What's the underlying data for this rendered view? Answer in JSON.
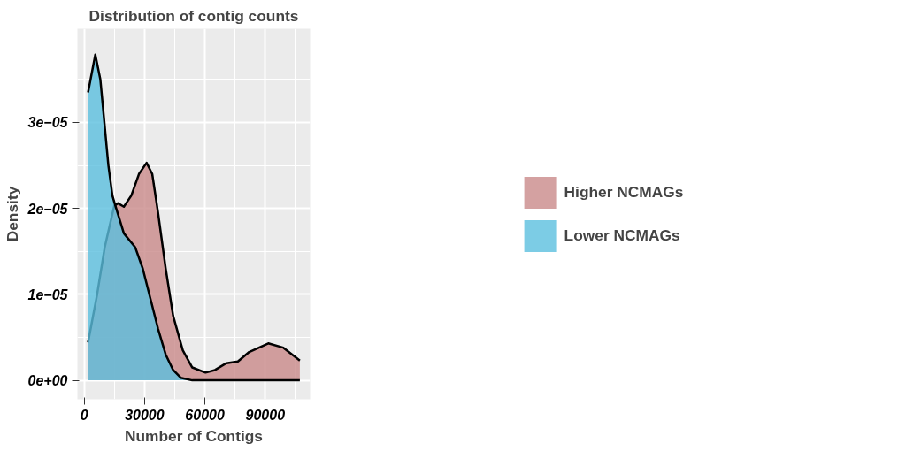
{
  "chart_data": {
    "type": "area",
    "title": "Distribution of contig counts",
    "xlabel": "Number of Contigs",
    "ylabel": "Density",
    "xlim": [
      -3400,
      112300
    ],
    "ylim": [
      -2.2e-06,
      4.09e-05
    ],
    "xticks": [
      0,
      30000,
      60000,
      90000
    ],
    "yticks": [
      {
        "value": 0,
        "label": "0e+00"
      },
      {
        "value": 1e-05,
        "label": "1e−05"
      },
      {
        "value": 2e-05,
        "label": "2e−05"
      },
      {
        "value": 3e-05,
        "label": "3e−05"
      }
    ],
    "grid": true,
    "legend": "right",
    "series": [
      {
        "name": "Higher NCMAGs",
        "color": "#c98a8a",
        "x": [
          1900,
          6400,
          10200,
          14900,
          16800,
          19700,
          23400,
          27200,
          31000,
          33800,
          36700,
          40500,
          44200,
          49000,
          53700,
          60300,
          65000,
          70700,
          76400,
          82000,
          91500,
          99000,
          107200
        ],
        "values": [
          4.4e-06,
          1e-05,
          1.55e-05,
          2.03e-05,
          2.06e-05,
          2.02e-05,
          2.15e-05,
          2.4e-05,
          2.53e-05,
          2.4e-05,
          1.95e-05,
          1.3e-05,
          7.5e-06,
          3.5e-06,
          1.5e-06,
          9e-07,
          1.2e-06,
          2e-06,
          2.2e-06,
          3.3e-06,
          4.3e-06,
          3.8e-06,
          2.3e-06
        ]
      },
      {
        "name": "Lower NCMAGs",
        "color": "#5bbfdf",
        "x": [
          1900,
          5500,
          8000,
          10000,
          12000,
          14000,
          15100,
          19700,
          25300,
          29100,
          32900,
          36700,
          40500,
          44200,
          48000,
          53700,
          107200
        ],
        "values": [
          3.35e-05,
          3.79e-05,
          3.5e-05,
          3e-05,
          2.5e-05,
          2.15e-05,
          2.06e-05,
          1.71e-05,
          1.55e-05,
          1.3e-05,
          9.5e-06,
          6e-06,
          3e-06,
          1.2e-06,
          3e-07,
          0,
          0
        ]
      }
    ]
  }
}
